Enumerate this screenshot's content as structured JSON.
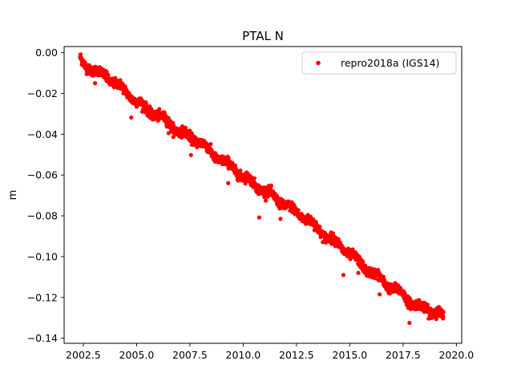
{
  "chart_data": {
    "type": "scatter",
    "title": "PTAL N",
    "xlabel": "",
    "ylabel": "m",
    "xlim": [
      2001.6,
      2020.25
    ],
    "ylim": [
      -0.1425,
      0.003
    ],
    "xticks": [
      2002.5,
      2005.0,
      2007.5,
      2010.0,
      2012.5,
      2015.0,
      2017.5,
      2020.0
    ],
    "xtick_labels": [
      "2002.5",
      "2005.0",
      "2007.5",
      "2010.0",
      "2012.5",
      "2015.0",
      "2017.5",
      "2020.0"
    ],
    "yticks": [
      0.0,
      -0.02,
      -0.04,
      -0.06,
      -0.08,
      -0.1,
      -0.12,
      -0.14
    ],
    "ytick_labels": [
      "0.00",
      "−0.02",
      "−0.04",
      "−0.06",
      "−0.08",
      "−0.10",
      "−0.12",
      "−0.14"
    ],
    "grid": false,
    "legend_position": "top-right",
    "series": [
      {
        "name": "repro2018a (IGS14)",
        "color": "#ff0000",
        "marker": "circle",
        "trend": {
          "x": [
            2002.35,
            2002.6,
            2003.0,
            2003.5,
            2004.0,
            2004.5,
            2005.0,
            2005.5,
            2006.0,
            2006.5,
            2007.0,
            2007.5,
            2008.0,
            2008.5,
            2009.0,
            2009.5,
            2010.0,
            2010.5,
            2011.0,
            2011.5,
            2012.0,
            2012.5,
            2013.0,
            2013.5,
            2014.0,
            2014.5,
            2015.0,
            2015.5,
            2016.0,
            2016.5,
            2017.0,
            2017.5,
            2018.0,
            2018.5,
            2019.0,
            2019.4
          ],
          "y": [
            -0.003,
            -0.006,
            -0.009,
            -0.011,
            -0.015,
            -0.019,
            -0.024,
            -0.028,
            -0.031,
            -0.034,
            -0.039,
            -0.041,
            -0.044,
            -0.049,
            -0.053,
            -0.056,
            -0.061,
            -0.064,
            -0.068,
            -0.071,
            -0.075,
            -0.078,
            -0.082,
            -0.086,
            -0.091,
            -0.094,
            -0.099,
            -0.103,
            -0.108,
            -0.111,
            -0.116,
            -0.118,
            -0.124,
            -0.125,
            -0.127,
            -0.13
          ]
        },
        "outliers": [
          {
            "x": 2003.6,
            "y": -0.0095
          },
          {
            "x": 2004.75,
            "y": -0.0318
          },
          {
            "x": 2006.5,
            "y": -0.0395
          },
          {
            "x": 2007.55,
            "y": -0.0502
          },
          {
            "x": 2010.75,
            "y": -0.0808
          },
          {
            "x": 2011.75,
            "y": -0.0815
          },
          {
            "x": 2016.4,
            "y": -0.1185
          },
          {
            "x": 2014.7,
            "y": -0.109
          },
          {
            "x": 2017.8,
            "y": -0.1325
          },
          {
            "x": 2015.4,
            "y": -0.108
          },
          {
            "x": 2009.3,
            "y": -0.064
          },
          {
            "x": 2003.05,
            "y": -0.015
          }
        ]
      }
    ]
  }
}
